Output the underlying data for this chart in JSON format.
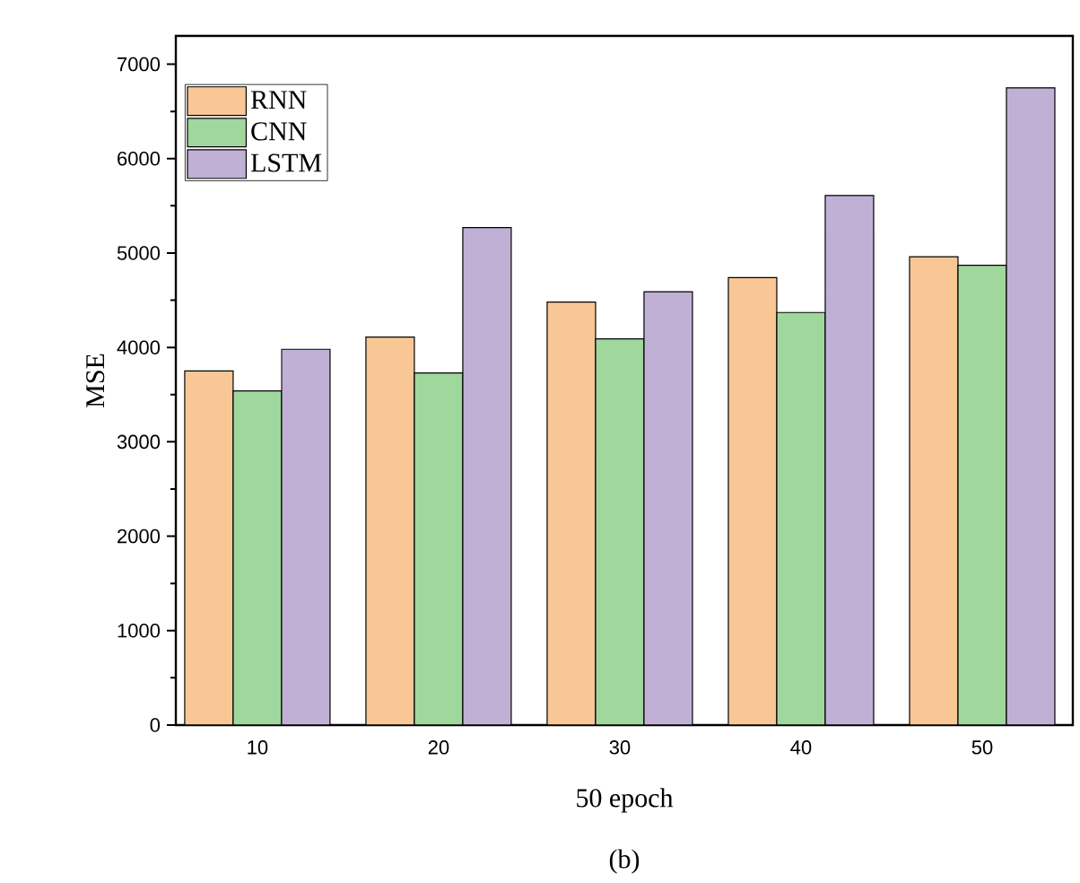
{
  "chart_data": {
    "type": "bar",
    "xlabel": "50 epoch",
    "ylabel": "MSE",
    "annotations": [
      "(b)"
    ],
    "categories": [
      "10",
      "20",
      "30",
      "40",
      "50"
    ],
    "series": [
      {
        "name": "RNN",
        "color": "#f9c795",
        "values": [
          3750,
          4110,
          4480,
          4740,
          4960
        ]
      },
      {
        "name": "CNN",
        "color": "#9fd79c",
        "values": [
          3540,
          3730,
          4090,
          4370,
          4870
        ]
      },
      {
        "name": "LSTM",
        "color": "#c1b0d6",
        "values": [
          3980,
          5270,
          4590,
          5610,
          6750
        ]
      }
    ],
    "ylim": [
      0,
      7300
    ],
    "yticks": [
      0,
      1000,
      2000,
      3000,
      4000,
      5000,
      6000,
      7000
    ],
    "grid": false,
    "legend": "top left"
  }
}
